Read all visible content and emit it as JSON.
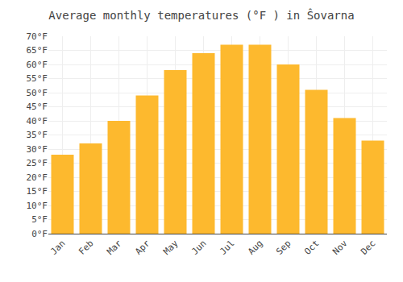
{
  "chart_data": {
    "type": "bar",
    "title": "Average monthly temperatures (°F ) in Ŝovarna",
    "categories": [
      "Jan",
      "Feb",
      "Mar",
      "Apr",
      "May",
      "Jun",
      "Jul",
      "Aug",
      "Sep",
      "Oct",
      "Nov",
      "Dec"
    ],
    "values": [
      28,
      32,
      40,
      49,
      58,
      64,
      67,
      67,
      60,
      51,
      41,
      33
    ],
    "color": "#FDB92E",
    "ylim": [
      0,
      70
    ],
    "yticks": [
      {
        "value": 0,
        "label": "0°F"
      },
      {
        "value": 5,
        "label": "5°F"
      },
      {
        "value": 10,
        "label": "10°F"
      },
      {
        "value": 15,
        "label": "15°F"
      },
      {
        "value": 20,
        "label": "20°F"
      },
      {
        "value": 25,
        "label": "25°F"
      },
      {
        "value": 30,
        "label": "30°F"
      },
      {
        "value": 35,
        "label": "35°F"
      },
      {
        "value": 40,
        "label": "40°F"
      },
      {
        "value": 45,
        "label": "45°F"
      },
      {
        "value": 50,
        "label": "50°F"
      },
      {
        "value": 55,
        "label": "55°F"
      },
      {
        "value": 60,
        "label": "60°F"
      },
      {
        "value": 65,
        "label": "65°F"
      },
      {
        "value": 70,
        "label": "70°F"
      }
    ],
    "grid": true
  }
}
